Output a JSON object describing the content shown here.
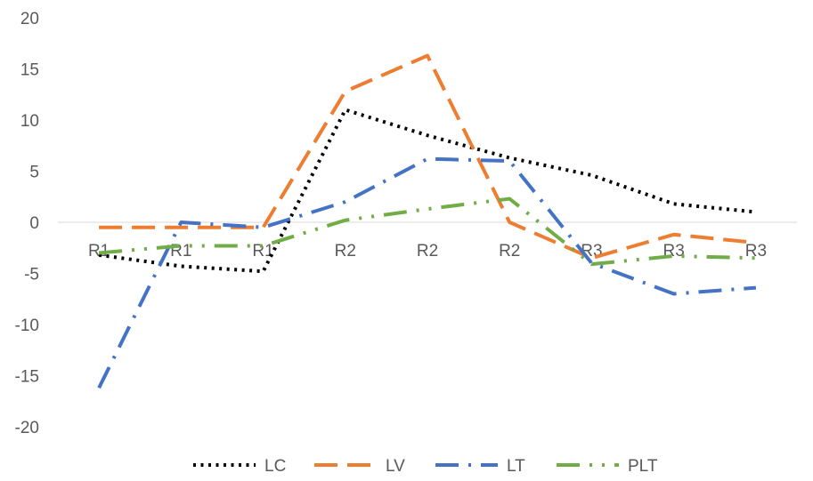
{
  "chart_data": {
    "type": "line",
    "title": "",
    "xlabel": "",
    "ylabel": "",
    "categories": [
      "R1",
      "R1",
      "R1",
      "R2",
      "R2",
      "R2",
      "R3",
      "R3",
      "R3"
    ],
    "ylim": [
      -20,
      20
    ],
    "yticks": [
      20,
      15,
      10,
      5,
      0,
      -5,
      -10,
      -15,
      -20
    ],
    "grid": false,
    "legend_position": "bottom",
    "series": [
      {
        "name": "LC",
        "color": "#000000",
        "dash": "dotted",
        "values": [
          -3.2,
          -4.3,
          -4.8,
          11.0,
          8.5,
          6.3,
          4.6,
          1.8,
          1.0
        ]
      },
      {
        "name": "LV",
        "color": "#ED7D31",
        "dash": "long-dash",
        "values": [
          -0.5,
          -0.5,
          -0.5,
          12.8,
          16.3,
          0.0,
          -3.5,
          -1.2,
          -2.0
        ]
      },
      {
        "name": "LT",
        "color": "#4472C4",
        "dash": "long-dash-dot",
        "values": [
          -16.2,
          0.0,
          -0.5,
          2.0,
          6.2,
          6.0,
          -4.0,
          -7.0,
          -6.4
        ]
      },
      {
        "name": "PLT",
        "color": "#70AD47",
        "dash": "long-dash-dot-dot",
        "values": [
          -3.0,
          -2.3,
          -2.3,
          0.2,
          1.3,
          2.3,
          -4.1,
          -3.3,
          -3.5
        ]
      }
    ]
  }
}
